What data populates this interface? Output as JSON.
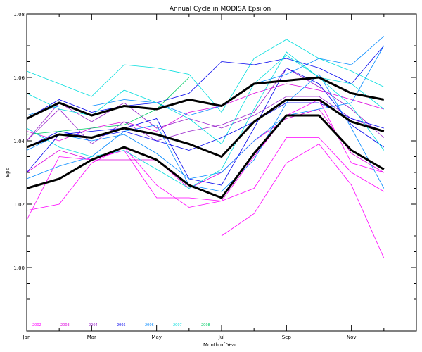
{
  "chart_data": {
    "type": "line",
    "title": "Annual Cycle in MODISA Epsilon",
    "xlabel": "Month of Year",
    "ylabel": "Eps",
    "xlim": [
      1,
      13
    ],
    "ylim": [
      0.98,
      1.08
    ],
    "x": [
      1,
      2,
      3,
      4,
      5,
      6,
      7,
      8,
      9,
      10,
      11,
      12
    ],
    "x_ticks": [
      {
        "value": 1,
        "label": "Jan"
      },
      {
        "value": 3,
        "label": "Mar"
      },
      {
        "value": 5,
        "label": "May"
      },
      {
        "value": 7,
        "label": "Jul"
      },
      {
        "value": 9,
        "label": "Sep"
      },
      {
        "value": 11,
        "label": "Nov"
      }
    ],
    "y_ticks": [
      {
        "value": 1.0,
        "label": "1.00"
      },
      {
        "value": 1.02,
        "label": "1.02"
      },
      {
        "value": 1.04,
        "label": "1.04"
      },
      {
        "value": 1.06,
        "label": "1.06"
      },
      {
        "value": 1.08,
        "label": "1.08"
      }
    ],
    "grid": false,
    "legend_position": "bottom-left",
    "legend": [
      {
        "label": "2002",
        "color": "#ff00ff"
      },
      {
        "label": "2003",
        "color": "#dd00dd"
      },
      {
        "label": "2004",
        "color": "#9922cc"
      },
      {
        "label": "2005",
        "color": "#0000ee"
      },
      {
        "label": "2006",
        "color": "#0088ff"
      },
      {
        "label": "2007",
        "color": "#00dddd"
      },
      {
        "label": "2008",
        "color": "#00cc66"
      }
    ],
    "series": [
      {
        "legend_ref": 0,
        "color": "#ff00ff",
        "values": [
          null,
          null,
          null,
          null,
          null,
          null,
          1.01,
          1.017,
          1.033,
          1.039,
          1.026,
          1.003
        ]
      },
      {
        "legend_ref": 0,
        "color": "#ff00ff",
        "values": [
          1.015,
          1.035,
          1.034,
          1.037,
          1.022,
          1.022,
          1.021,
          1.025,
          1.041,
          1.041,
          1.03,
          1.024
        ]
      },
      {
        "legend_ref": 0,
        "color": "#ff00ff",
        "values": [
          1.018,
          1.02,
          1.033,
          1.038,
          1.026,
          1.019,
          1.021,
          1.035,
          1.048,
          1.053,
          1.033,
          1.03
        ]
      },
      {
        "legend_ref": 1,
        "color": "#dd00dd",
        "values": [
          1.03,
          1.037,
          1.034,
          1.034,
          1.034,
          1.025,
          1.03,
          1.04,
          1.047,
          1.05,
          1.036,
          1.03
        ]
      },
      {
        "legend_ref": 1,
        "color": "#dd00dd",
        "values": [
          1.043,
          1.04,
          1.044,
          1.046,
          1.043,
          1.049,
          1.051,
          1.055,
          1.058,
          1.056,
          1.053,
          1.05
        ]
      },
      {
        "legend_ref": 2,
        "color": "#9922cc",
        "values": [
          1.04,
          1.05,
          1.039,
          1.046,
          1.04,
          1.043,
          1.045,
          1.049,
          1.063,
          1.057,
          1.05,
          1.041
        ]
      },
      {
        "legend_ref": 2,
        "color": "#9922cc",
        "values": [
          1.04,
          1.052,
          1.046,
          1.052,
          1.044,
          1.047,
          1.044,
          1.048,
          1.054,
          1.054,
          1.047,
          1.043
        ]
      },
      {
        "legend_ref": 3,
        "color": "#0000ee",
        "values": [
          1.047,
          1.053,
          1.049,
          1.051,
          1.052,
          1.055,
          1.065,
          1.064,
          1.066,
          1.063,
          1.058,
          1.07
        ]
      },
      {
        "legend_ref": 3,
        "color": "#0000ee",
        "values": [
          1.03,
          1.042,
          1.043,
          1.044,
          1.047,
          1.028,
          1.026,
          1.044,
          1.063,
          1.058,
          1.045,
          1.038
        ]
      },
      {
        "legend_ref": 3,
        "color": "#0000ee",
        "values": [
          1.038,
          1.043,
          1.041,
          1.043,
          1.04,
          1.037,
          1.041,
          1.046,
          1.052,
          1.052,
          1.047,
          1.044
        ]
      },
      {
        "legend_ref": 4,
        "color": "#0088ff",
        "values": [
          1.028,
          1.032,
          1.035,
          1.043,
          1.045,
          1.026,
          1.024,
          1.034,
          1.052,
          1.061,
          1.044,
          1.025
        ]
      },
      {
        "legend_ref": 4,
        "color": "#0088ff",
        "values": [
          1.037,
          1.042,
          1.04,
          1.042,
          1.036,
          1.028,
          1.03,
          1.04,
          1.048,
          1.05,
          1.052,
          1.07
        ]
      },
      {
        "legend_ref": 4,
        "color": "#0088ff",
        "values": [
          1.048,
          1.051,
          1.051,
          1.053,
          1.052,
          1.048,
          1.051,
          1.058,
          1.061,
          1.066,
          1.064,
          1.073
        ]
      },
      {
        "legend_ref": 5,
        "color": "#00dddd",
        "values": [
          1.062,
          1.058,
          1.054,
          1.064,
          1.063,
          1.061,
          1.049,
          1.066,
          1.072,
          1.066,
          1.062,
          1.057
        ]
      },
      {
        "legend_ref": 5,
        "color": "#00dddd",
        "values": [
          1.055,
          1.05,
          1.048,
          1.056,
          1.052,
          1.047,
          1.039,
          1.058,
          1.067,
          1.06,
          1.058,
          1.05
        ]
      },
      {
        "legend_ref": 5,
        "color": "#00dddd",
        "values": [
          1.044,
          1.038,
          1.035,
          1.037,
          1.031,
          1.025,
          1.031,
          1.05,
          1.068,
          1.06,
          1.051,
          1.037
        ]
      },
      {
        "legend_ref": 6,
        "color": "#00cc66",
        "values": [
          1.042,
          1.043,
          1.044,
          1.045,
          1.05,
          1.06,
          null,
          null,
          null,
          null,
          null,
          null
        ]
      }
    ],
    "bold_series": [
      {
        "color": "#000000",
        "values": [
          1.047,
          1.052,
          1.048,
          1.051,
          1.05,
          1.053,
          1.051,
          1.058,
          1.059,
          1.06,
          1.055,
          1.053
        ]
      },
      {
        "color": "#000000",
        "values": [
          1.038,
          1.042,
          1.041,
          1.044,
          1.042,
          1.039,
          1.035,
          1.046,
          1.053,
          1.053,
          1.046,
          1.043
        ]
      },
      {
        "color": "#000000",
        "values": [
          1.025,
          1.028,
          1.034,
          1.038,
          1.034,
          1.026,
          1.022,
          1.036,
          1.048,
          1.048,
          1.037,
          1.031
        ]
      }
    ]
  }
}
